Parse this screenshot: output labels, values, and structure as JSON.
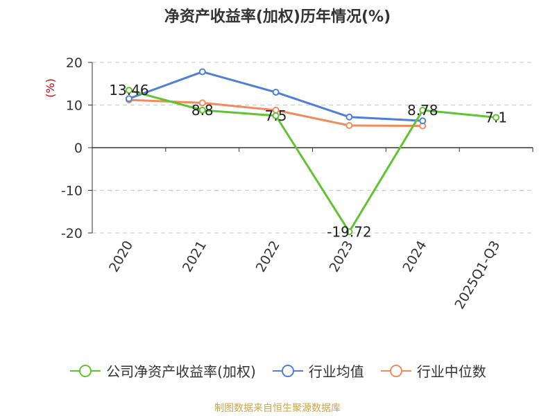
{
  "title": "净资产收益率(加权)历年情况(%)",
  "source": "制图数据来自恒生聚源数据库",
  "chart_data": {
    "type": "line",
    "title": "净资产收益率(加权)历年情况(%)",
    "ylabel": "(%)",
    "ylim": [
      -20,
      20
    ],
    "yticks": [
      20,
      10,
      0,
      -10,
      -20
    ],
    "categories": [
      "2020",
      "2021",
      "2022",
      "2023",
      "2024",
      "2025Q1-Q3"
    ],
    "series": [
      {
        "name": "公司净资产收益率(加权)",
        "color": "#5ec432",
        "values": [
          13.46,
          8.8,
          7.5,
          -19.72,
          8.78,
          7.1
        ],
        "labels": [
          "13.46",
          "8.8",
          "7.5",
          "-19.72",
          "8.78",
          "7.1"
        ]
      },
      {
        "name": "行业均值",
        "color": "#4f7fd8",
        "values": [
          11.5,
          17.8,
          13.0,
          7.2,
          6.3,
          null
        ]
      },
      {
        "name": "行业中位数",
        "color": "#f28b5b",
        "values": [
          11.2,
          10.5,
          8.8,
          5.2,
          5.1,
          null
        ]
      }
    ]
  }
}
